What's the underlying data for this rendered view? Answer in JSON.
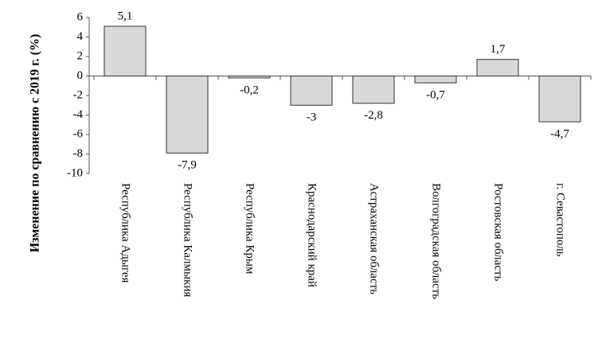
{
  "chart_data": {
    "type": "bar",
    "y_label": "Изменение по сравнению с 2019 г. (%)",
    "categories": [
      "Республика Адыгея",
      "Республика Калмыкия",
      "Республика Крым",
      "Краснодарский край",
      "Астраханская область",
      "Волгоградская область",
      "Ростовская область",
      "г. Севастополь"
    ],
    "values": [
      5.1,
      -7.9,
      -0.2,
      -3,
      -2.8,
      -0.7,
      1.7,
      -4.7
    ],
    "value_labels": [
      "5,1",
      "-7,9",
      "-0,2",
      "-3",
      "-2,8",
      "-0,7",
      "1,7",
      "-4,7"
    ],
    "color": "#d9d9d9",
    "ylim": [
      -10,
      6
    ],
    "yticks": [
      -10,
      -8,
      -6,
      -4,
      -2,
      0,
      2,
      4,
      6
    ]
  }
}
